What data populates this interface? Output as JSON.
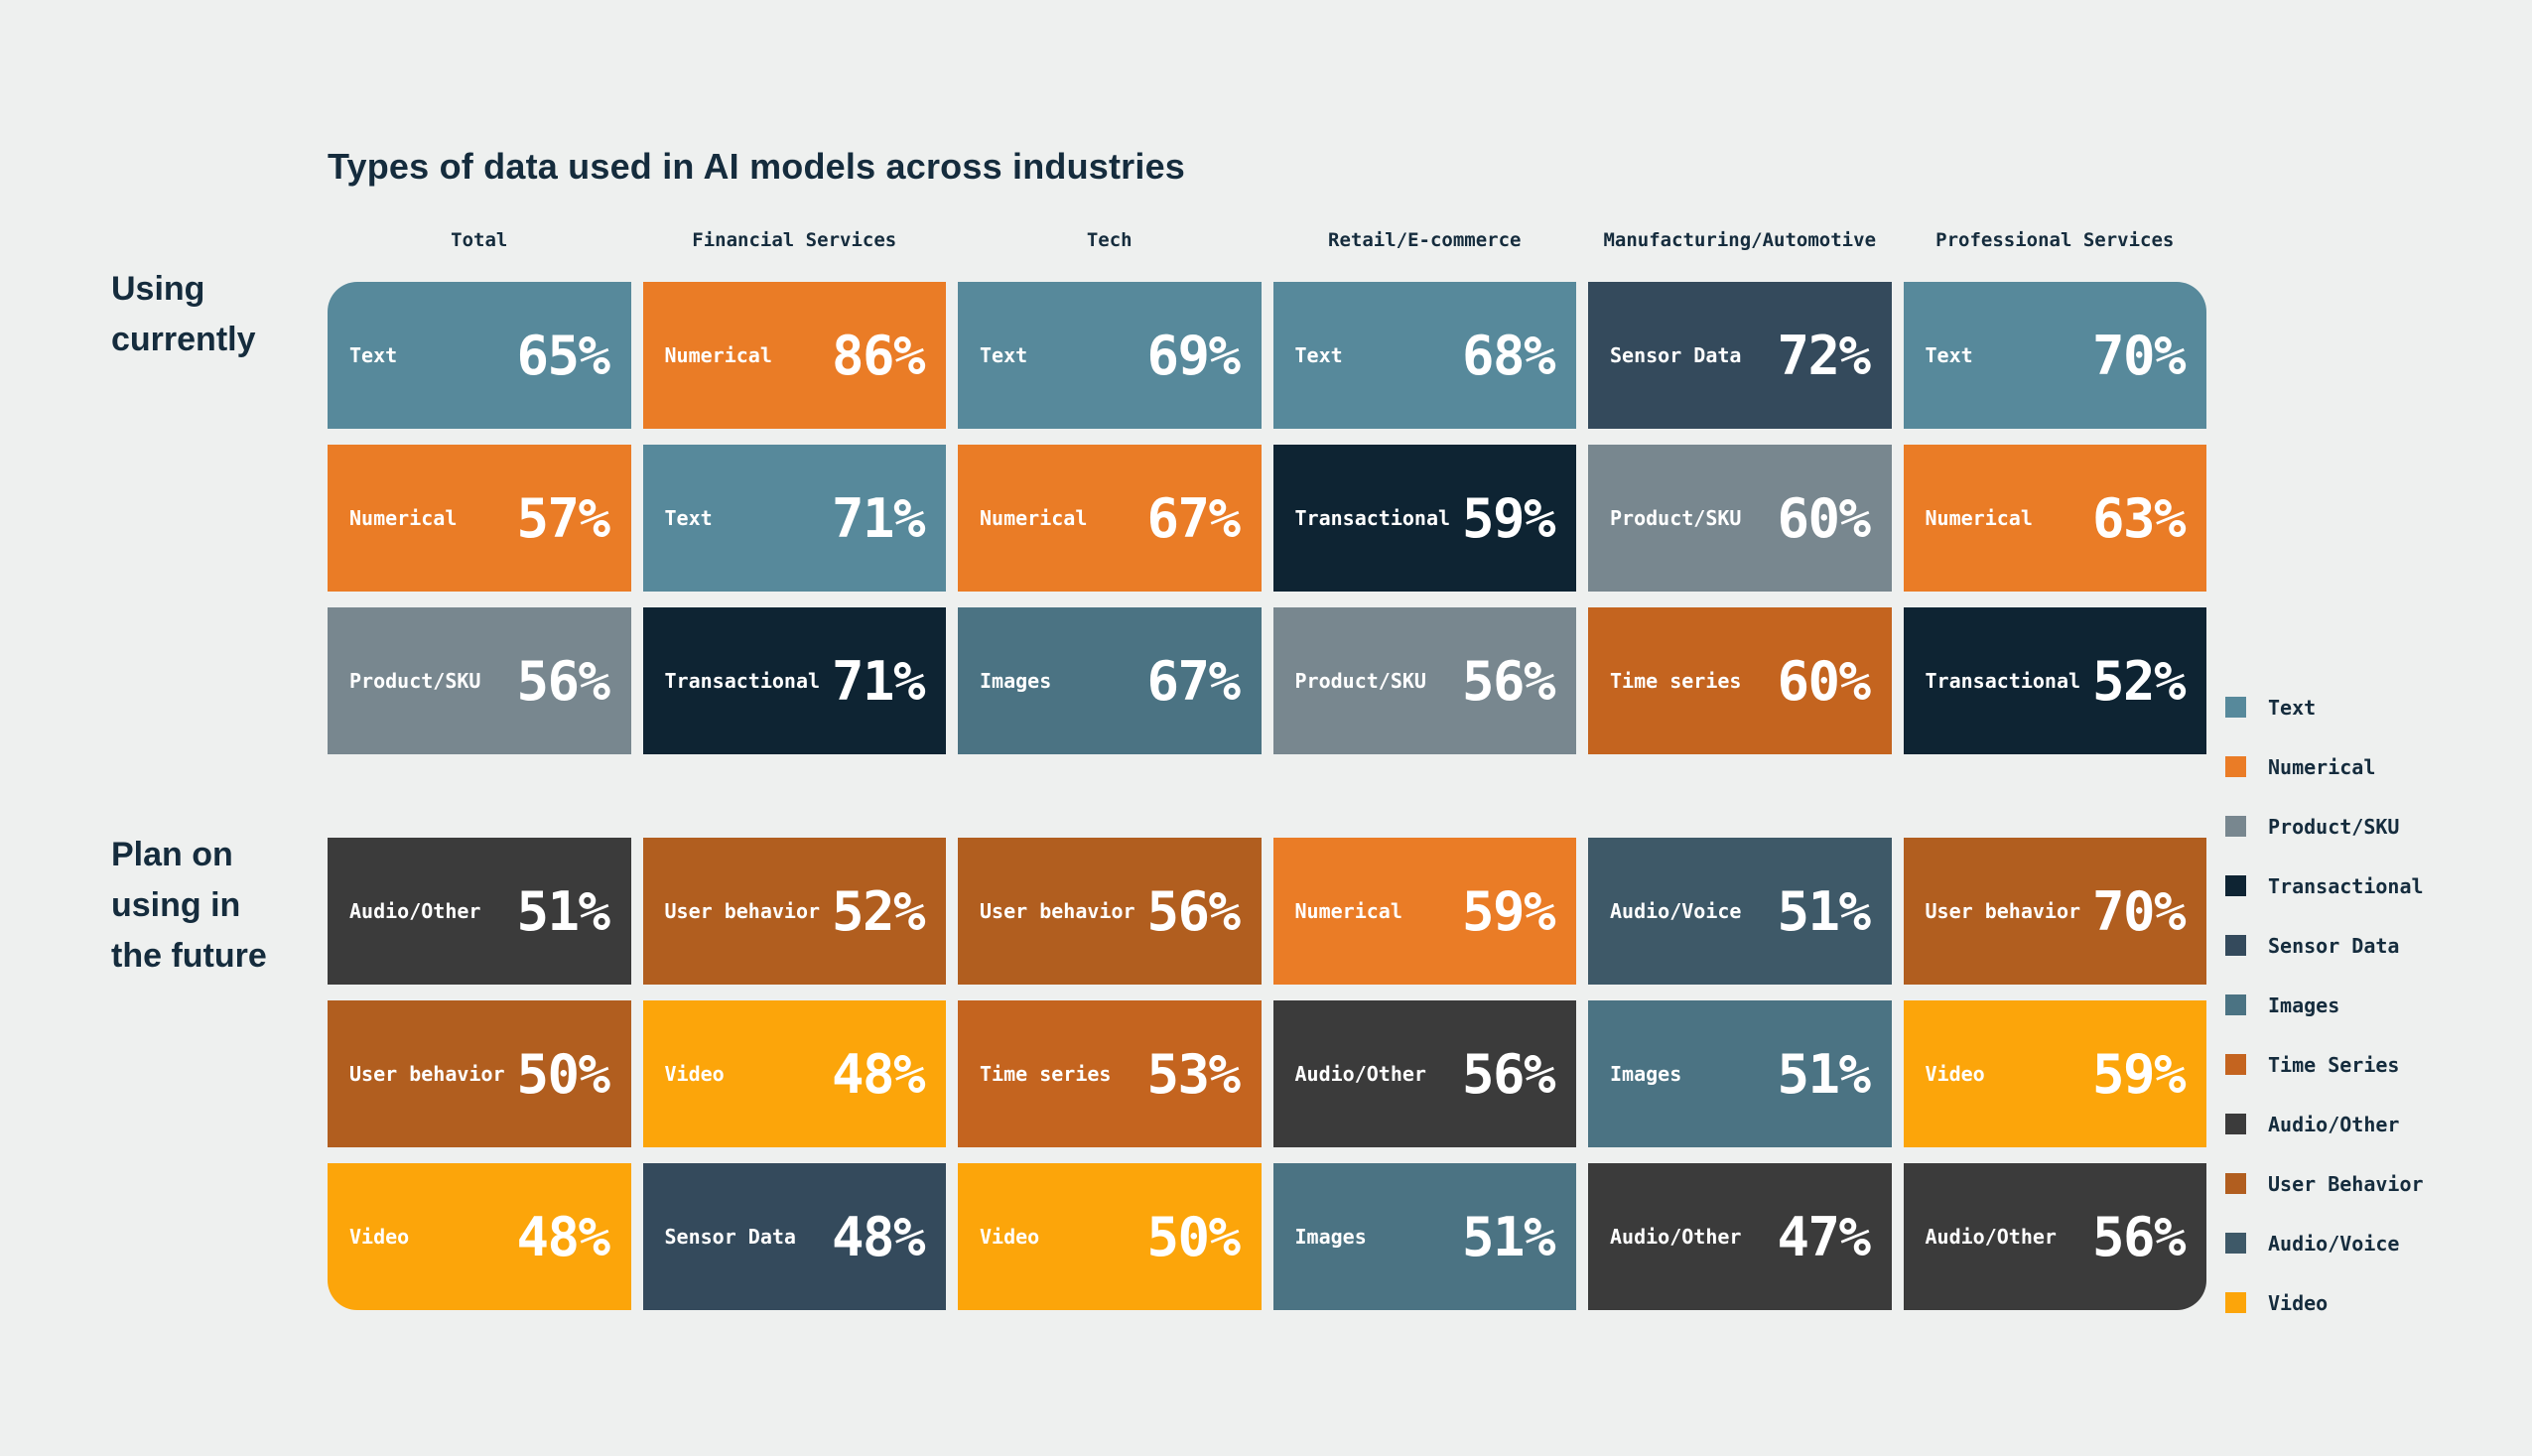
{
  "chart_data": {
    "type": "table",
    "title": "Types of data used in AI models across industries",
    "value_suffix": "%",
    "columns": [
      "Total",
      "Financial Services",
      "Tech",
      "Retail/E-commerce",
      "Manufacturing/Automotive",
      "Professional Services"
    ],
    "palette": {
      "text": "#57899B",
      "numerical": "#EA7C26",
      "product_sku": "#78878F",
      "transactional": "#0E2433",
      "sensor_data": "#344A5C",
      "images": "#4B7383",
      "time_series": "#C4641F",
      "audio_other": "#3B3B3B",
      "user_behavior": "#B15E1F",
      "audio_voice": "#3E5968",
      "video": "#FCA50A"
    },
    "row_groups": [
      {
        "label": "Using\ncurrently",
        "rows": [
          [
            {
              "label": "Text",
              "value": 65,
              "category": "text"
            },
            {
              "label": "Numerical",
              "value": 86,
              "category": "numerical"
            },
            {
              "label": "Text",
              "value": 69,
              "category": "text"
            },
            {
              "label": "Text",
              "value": 68,
              "category": "text"
            },
            {
              "label": "Sensor Data",
              "value": 72,
              "category": "sensor_data"
            },
            {
              "label": "Text",
              "value": 70,
              "category": "text"
            }
          ],
          [
            {
              "label": "Numerical",
              "value": 57,
              "category": "numerical"
            },
            {
              "label": "Text",
              "value": 71,
              "category": "text"
            },
            {
              "label": "Numerical",
              "value": 67,
              "category": "numerical"
            },
            {
              "label": "Transactional",
              "value": 59,
              "category": "transactional"
            },
            {
              "label": "Product/SKU",
              "value": 60,
              "category": "product_sku"
            },
            {
              "label": "Numerical",
              "value": 63,
              "category": "numerical"
            }
          ],
          [
            {
              "label": "Product/SKU",
              "value": 56,
              "category": "product_sku"
            },
            {
              "label": "Transactional",
              "value": 71,
              "category": "transactional"
            },
            {
              "label": "Images",
              "value": 67,
              "category": "images"
            },
            {
              "label": "Product/SKU",
              "value": 56,
              "category": "product_sku"
            },
            {
              "label": "Time series",
              "value": 60,
              "category": "time_series"
            },
            {
              "label": "Transactional",
              "value": 52,
              "category": "transactional"
            }
          ]
        ]
      },
      {
        "label": "Plan on\nusing in\nthe future",
        "rows": [
          [
            {
              "label": "Audio/Other",
              "value": 51,
              "category": "audio_other"
            },
            {
              "label": "User behavior",
              "value": 52,
              "category": "user_behavior"
            },
            {
              "label": "User behavior",
              "value": 56,
              "category": "user_behavior"
            },
            {
              "label": "Numerical",
              "value": 59,
              "category": "numerical"
            },
            {
              "label": "Audio/Voice",
              "value": 51,
              "category": "audio_voice"
            },
            {
              "label": "User behavior",
              "value": 70,
              "category": "user_behavior"
            }
          ],
          [
            {
              "label": "User behavior",
              "value": 50,
              "category": "user_behavior"
            },
            {
              "label": "Video",
              "value": 48,
              "category": "video"
            },
            {
              "label": "Time series",
              "value": 53,
              "category": "time_series"
            },
            {
              "label": "Audio/Other",
              "value": 56,
              "category": "audio_other"
            },
            {
              "label": "Images",
              "value": 51,
              "category": "images"
            },
            {
              "label": "Video",
              "value": 59,
              "category": "video"
            }
          ],
          [
            {
              "label": "Video",
              "value": 48,
              "category": "video"
            },
            {
              "label": "Sensor Data",
              "value": 48,
              "category": "sensor_data"
            },
            {
              "label": "Video",
              "value": 50,
              "category": "video"
            },
            {
              "label": "Images",
              "value": 51,
              "category": "images"
            },
            {
              "label": "Audio/Other",
              "value": 47,
              "category": "audio_other"
            },
            {
              "label": "Audio/Other",
              "value": 56,
              "category": "audio_other"
            }
          ]
        ]
      }
    ],
    "legend": [
      {
        "label": "Text",
        "category": "text"
      },
      {
        "label": "Numerical",
        "category": "numerical"
      },
      {
        "label": "Product/SKU",
        "category": "product_sku"
      },
      {
        "label": "Transactional",
        "category": "transactional"
      },
      {
        "label": "Sensor Data",
        "category": "sensor_data"
      },
      {
        "label": "Images",
        "category": "images"
      },
      {
        "label": "Time Series",
        "category": "time_series"
      },
      {
        "label": "Audio/Other",
        "category": "audio_other"
      },
      {
        "label": "User Behavior",
        "category": "user_behavior"
      },
      {
        "label": "Audio/Voice",
        "category": "audio_voice"
      },
      {
        "label": "Video",
        "category": "video"
      }
    ]
  }
}
